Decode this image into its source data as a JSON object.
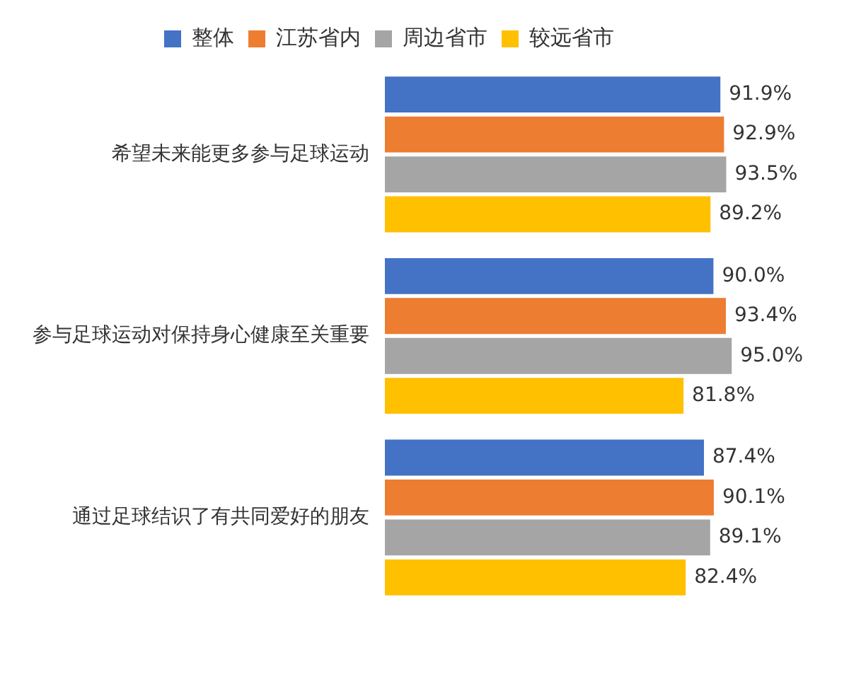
{
  "chart_data": {
    "type": "bar",
    "orientation": "horizontal",
    "categories": [
      "希望未来能更多参与足球运动",
      "参与足球运动对保持身心健康至关重要",
      "通过足球结识了有共同爱好的朋友"
    ],
    "series": [
      {
        "name": "整体",
        "color": "#4472c4",
        "values": [
          91.9,
          90.0,
          87.4
        ],
        "value_labels": [
          "91.9%",
          "90.0%",
          "87.4%"
        ]
      },
      {
        "name": "江苏省内",
        "color": "#ed7d31",
        "values": [
          92.9,
          93.4,
          90.1
        ],
        "value_labels": [
          "92.9%",
          "93.4%",
          "90.1%"
        ]
      },
      {
        "name": "周边省市",
        "color": "#a5a5a5",
        "values": [
          93.5,
          95.0,
          89.1
        ],
        "value_labels": [
          "93.5%",
          "95.0%",
          "89.1%"
        ]
      },
      {
        "name": "较远省市",
        "color": "#ffc000",
        "values": [
          89.2,
          81.8,
          82.4
        ],
        "value_labels": [
          "89.2%",
          "81.8%",
          "82.4%"
        ]
      }
    ],
    "tick_labels": "y",
    "legend": "top"
  }
}
